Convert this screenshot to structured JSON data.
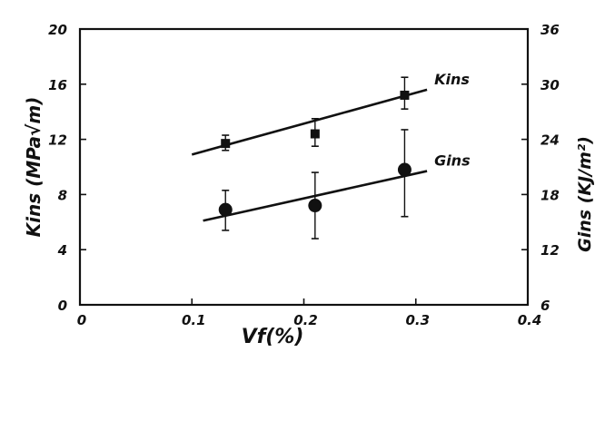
{
  "chart_data": {
    "type": "scatter",
    "x": [
      0.13,
      0.21,
      0.29
    ],
    "xlim": [
      0,
      0.4
    ],
    "xticks": [
      "0",
      "0.1",
      "0.2",
      "0.3",
      "0.4"
    ],
    "xlabel": "Vf(%)",
    "ylabel_left": "Kins (MPa√m)",
    "ylim_left": [
      0,
      20
    ],
    "yticks_left": [
      "0",
      "4",
      "8",
      "12",
      "16",
      "20"
    ],
    "ylabel_right": "Gins (KJ/m²)",
    "ylim_right": [
      6,
      36
    ],
    "yticks_right": [
      "6",
      "12",
      "18",
      "24",
      "30",
      "36"
    ],
    "grid": false,
    "series": [
      {
        "name": "Kins",
        "axis": "left",
        "marker": "square",
        "values": [
          11.7,
          12.4,
          15.2
        ],
        "error_low": [
          11.2,
          11.5,
          14.2
        ],
        "error_high": [
          12.3,
          13.5,
          16.5
        ],
        "fit": [
          [
            0.1,
            10.9
          ],
          [
            0.31,
            15.6
          ]
        ]
      },
      {
        "name": "Gins",
        "axis": "left",
        "marker": "circle",
        "values": [
          6.9,
          7.2,
          9.8
        ],
        "error_low": [
          5.4,
          4.8,
          6.4
        ],
        "error_high": [
          8.3,
          9.6,
          12.7
        ],
        "fit": [
          [
            0.11,
            6.1
          ],
          [
            0.31,
            9.7
          ]
        ]
      }
    ]
  }
}
